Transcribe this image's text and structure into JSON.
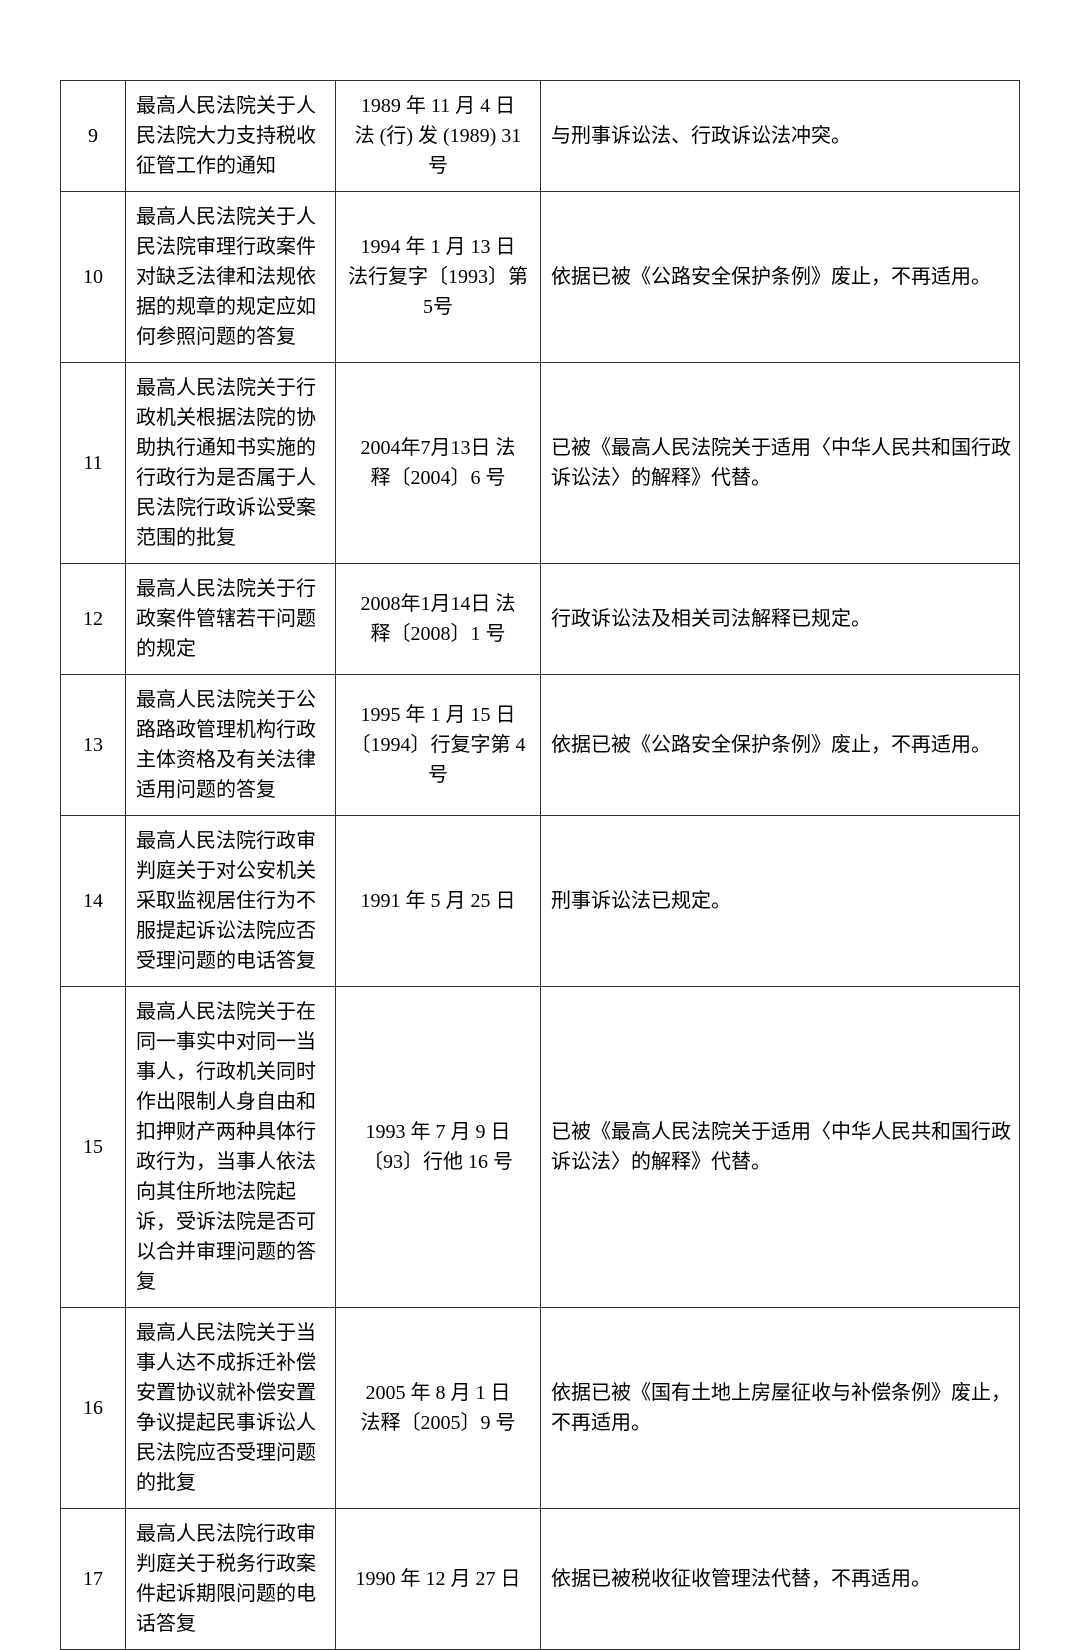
{
  "table": {
    "columns": {
      "num_width": 65,
      "title_width": 210,
      "date_width": 205,
      "reason_width": "auto"
    },
    "border_color": "#333333",
    "font_size": 20,
    "text_color": "#000000",
    "background_color": "#ffffff",
    "rows": [
      {
        "num": "9",
        "title": "最高人民法院关于人民法院大力支持税收征管工作的通知",
        "date_line1": "1989 年 11 月 4 日",
        "date_line2": "法 (行) 发 (1989) 31 号",
        "reason": "与刑事诉讼法、行政诉讼法冲突。"
      },
      {
        "num": "10",
        "title": "最高人民法院关于人民法院审理行政案件对缺乏法律和法规依据的规章的规定应如何参照问题的答复",
        "date_line1": "1994 年 1 月 13 日",
        "date_line2": "法行复字〔1993〕第5号",
        "reason": "依据已被《公路安全保护条例》废止，不再适用。"
      },
      {
        "num": "11",
        "title": "最高人民法院关于行政机关根据法院的协助执行通知书实施的行政行为是否属于人民法院行政诉讼受案范围的批复",
        "date_line1": "2004年7月13日 法",
        "date_line2": "释〔2004〕6 号",
        "reason": "已被《最高人民法院关于适用〈中华人民共和国行政诉讼法〉的解释》代替。"
      },
      {
        "num": "12",
        "title": "最高人民法院关于行政案件管辖若干问题的规定",
        "date_line1": "2008年1月14日 法",
        "date_line2": "释〔2008〕1 号",
        "reason": "行政诉讼法及相关司法解释已规定。"
      },
      {
        "num": "13",
        "title": "最高人民法院关于公路路政管理机构行政主体资格及有关法律适用问题的答复",
        "date_line1": "1995 年 1 月 15 日",
        "date_line2": "〔1994〕行复字第 4 号",
        "reason": "依据已被《公路安全保护条例》废止，不再适用。"
      },
      {
        "num": "14",
        "title": "最高人民法院行政审判庭关于对公安机关采取监视居住行为不服提起诉讼法院应否受理问题的电话答复",
        "date_line1": "1991 年 5 月 25 日",
        "date_line2": "",
        "reason": "刑事诉讼法已规定。"
      },
      {
        "num": "15",
        "title": "最高人民法院关于在同一事实中对同一当事人，行政机关同时作出限制人身自由和扣押财产两种具体行政行为，当事人依法向其住所地法院起诉，受诉法院是否可以合并审理问题的答复",
        "date_line1": "1993 年 7 月 9 日",
        "date_line2": "〔93〕行他 16 号",
        "reason": "已被《最高人民法院关于适用〈中华人民共和国行政诉讼法〉的解释》代替。"
      },
      {
        "num": "16",
        "title": "最高人民法院关于当事人达不成拆迁补偿安置协议就补偿安置争议提起民事诉讼人民法院应否受理问题的批复",
        "date_line1": "2005 年 8 月 1 日",
        "date_line2": "法释〔2005〕9 号",
        "reason": "依据已被《国有土地上房屋征收与补偿条例》废止，不再适用。"
      },
      {
        "num": "17",
        "title": "最高人民法院行政审判庭关于税务行政案件起诉期限问题的电话答复",
        "date_line1": "1990 年 12 月 27 日",
        "date_line2": "",
        "reason": "依据已被税收征收管理法代替，不再适用。"
      }
    ]
  }
}
